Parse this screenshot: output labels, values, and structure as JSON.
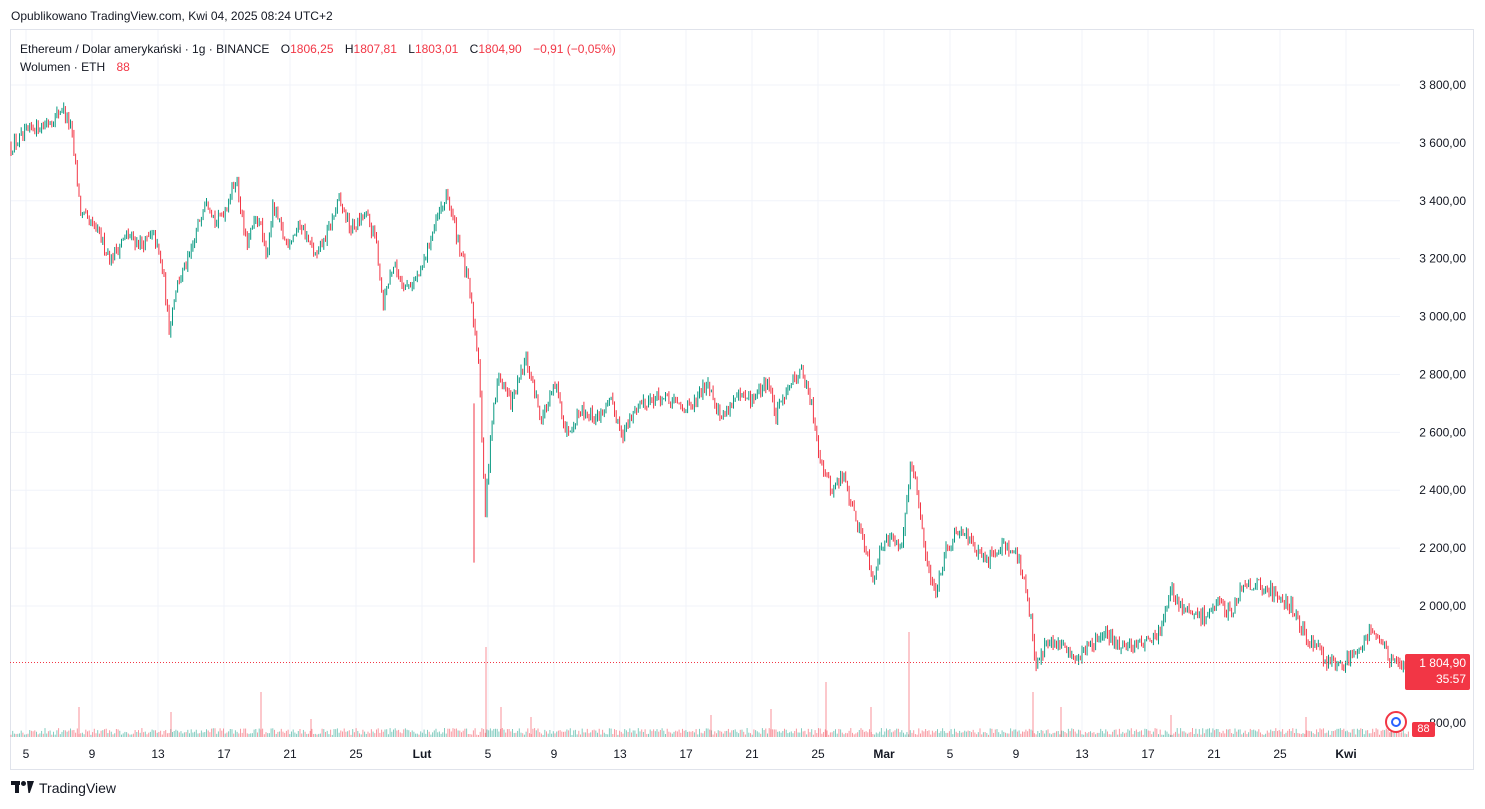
{
  "caption": "Opublikowano TradingView.com, Kwi 04, 2025 08:24 UTC+2",
  "legend": {
    "symbol": "Ethereum / Dolar amerykański · 1g · BINANCE",
    "o_label": "O",
    "o": "1806,25",
    "h_label": "H",
    "h": "1807,81",
    "l_label": "L",
    "l": "1803,01",
    "c_label": "C",
    "c": "1804,90",
    "change": "−0,91 (−0,05%)",
    "volume_label": "Wolumen · ETH",
    "volume": "88"
  },
  "last_price": "1 804,90",
  "countdown": "35:57",
  "volume_tag": "88",
  "footer_brand": "TradingView",
  "colors": {
    "up": "#089981",
    "down": "#f23645",
    "grid": "#f0f3fa",
    "text": "#131722"
  },
  "chart_data": {
    "type": "candlestick",
    "timeframe": "1h",
    "ylim": [
      1750,
      3900
    ],
    "y_ticks": [
      "3 800,00",
      "3 600,00",
      "3 400,00",
      "3 200,00",
      "3 000,00",
      "2 800,00",
      "2 600,00",
      "2 400,00",
      "2 200,00",
      "2 000,00"
    ],
    "y_tick_values": [
      3800,
      3600,
      3400,
      3200,
      3000,
      2800,
      2600,
      2400,
      2200,
      2000
    ],
    "x_ticks": [
      "5",
      "9",
      "13",
      "17",
      "21",
      "25",
      "Lut",
      "5",
      "9",
      "13",
      "17",
      "21",
      "25",
      "Mar",
      "5",
      "9",
      "13",
      "17",
      "21",
      "25",
      "Kwi"
    ],
    "x_ticks_bold": [
      false,
      false,
      false,
      false,
      false,
      false,
      true,
      false,
      false,
      false,
      false,
      false,
      false,
      true,
      false,
      false,
      false,
      false,
      false,
      false,
      true
    ],
    "volume_axis_tick": "800,00",
    "close_path": [
      [
        0,
        3590
      ],
      [
        22,
        3650
      ],
      [
        40,
        3680
      ],
      [
        52,
        3720
      ],
      [
        60,
        3650
      ],
      [
        70,
        3350
      ],
      [
        85,
        3300
      ],
      [
        100,
        3200
      ],
      [
        115,
        3280
      ],
      [
        130,
        3250
      ],
      [
        143,
        3280
      ],
      [
        152,
        3150
      ],
      [
        158,
        2960
      ],
      [
        165,
        3100
      ],
      [
        180,
        3220
      ],
      [
        195,
        3420
      ],
      [
        205,
        3320
      ],
      [
        215,
        3380
      ],
      [
        225,
        3480
      ],
      [
        235,
        3250
      ],
      [
        248,
        3350
      ],
      [
        255,
        3200
      ],
      [
        262,
        3380
      ],
      [
        275,
        3250
      ],
      [
        290,
        3320
      ],
      [
        305,
        3200
      ],
      [
        318,
        3300
      ],
      [
        328,
        3400
      ],
      [
        340,
        3300
      ],
      [
        355,
        3350
      ],
      [
        365,
        3260
      ],
      [
        372,
        3050
      ],
      [
        382,
        3180
      ],
      [
        395,
        3100
      ],
      [
        410,
        3150
      ],
      [
        420,
        3280
      ],
      [
        436,
        3420
      ],
      [
        448,
        3250
      ],
      [
        458,
        3100
      ],
      [
        468,
        2850
      ],
      [
        474,
        2300
      ],
      [
        480,
        2620
      ],
      [
        488,
        2800
      ],
      [
        500,
        2700
      ],
      [
        515,
        2850
      ],
      [
        530,
        2650
      ],
      [
        545,
        2760
      ],
      [
        555,
        2600
      ],
      [
        570,
        2680
      ],
      [
        585,
        2650
      ],
      [
        600,
        2700
      ],
      [
        612,
        2600
      ],
      [
        628,
        2700
      ],
      [
        645,
        2720
      ],
      [
        660,
        2700
      ],
      [
        680,
        2680
      ],
      [
        697,
        2780
      ],
      [
        710,
        2650
      ],
      [
        725,
        2720
      ],
      [
        740,
        2710
      ],
      [
        757,
        2780
      ],
      [
        765,
        2650
      ],
      [
        775,
        2750
      ],
      [
        790,
        2820
      ],
      [
        800,
        2700
      ],
      [
        810,
        2500
      ],
      [
        820,
        2400
      ],
      [
        832,
        2450
      ],
      [
        845,
        2300
      ],
      [
        855,
        2200
      ],
      [
        862,
        2100
      ],
      [
        875,
        2250
      ],
      [
        890,
        2200
      ],
      [
        900,
        2500
      ],
      [
        908,
        2350
      ],
      [
        915,
        2150
      ],
      [
        925,
        2050
      ],
      [
        935,
        2200
      ],
      [
        950,
        2280
      ],
      [
        962,
        2200
      ],
      [
        975,
        2150
      ],
      [
        992,
        2220
      ],
      [
        1005,
        2180
      ],
      [
        1015,
        2060
      ],
      [
        1020,
        1950
      ],
      [
        1025,
        1800
      ],
      [
        1035,
        1870
      ],
      [
        1050,
        1860
      ],
      [
        1065,
        1820
      ],
      [
        1080,
        1870
      ],
      [
        1095,
        1900
      ],
      [
        1110,
        1860
      ],
      [
        1125,
        1870
      ],
      [
        1140,
        1880
      ],
      [
        1150,
        1920
      ],
      [
        1160,
        2050
      ],
      [
        1175,
        1980
      ],
      [
        1190,
        1960
      ],
      [
        1205,
        2000
      ],
      [
        1220,
        1980
      ],
      [
        1232,
        2080
      ],
      [
        1250,
        2070
      ],
      [
        1265,
        2040
      ],
      [
        1280,
        2000
      ],
      [
        1290,
        1920
      ],
      [
        1302,
        1870
      ],
      [
        1315,
        1810
      ],
      [
        1330,
        1790
      ],
      [
        1345,
        1850
      ],
      [
        1360,
        1920
      ],
      [
        1372,
        1870
      ],
      [
        1380,
        1800
      ],
      [
        1390,
        1790
      ],
      [
        1398,
        1805
      ]
    ],
    "volume_spikes": [
      [
        68,
        30
      ],
      [
        160,
        25
      ],
      [
        250,
        45
      ],
      [
        300,
        18
      ],
      [
        475,
        90
      ],
      [
        490,
        30
      ],
      [
        520,
        20
      ],
      [
        700,
        22
      ],
      [
        760,
        28
      ],
      [
        815,
        55
      ],
      [
        860,
        30
      ],
      [
        898,
        105
      ],
      [
        1022,
        45
      ],
      [
        1050,
        30
      ],
      [
        1160,
        22
      ],
      [
        1295,
        20
      ],
      [
        1380,
        22
      ]
    ]
  }
}
